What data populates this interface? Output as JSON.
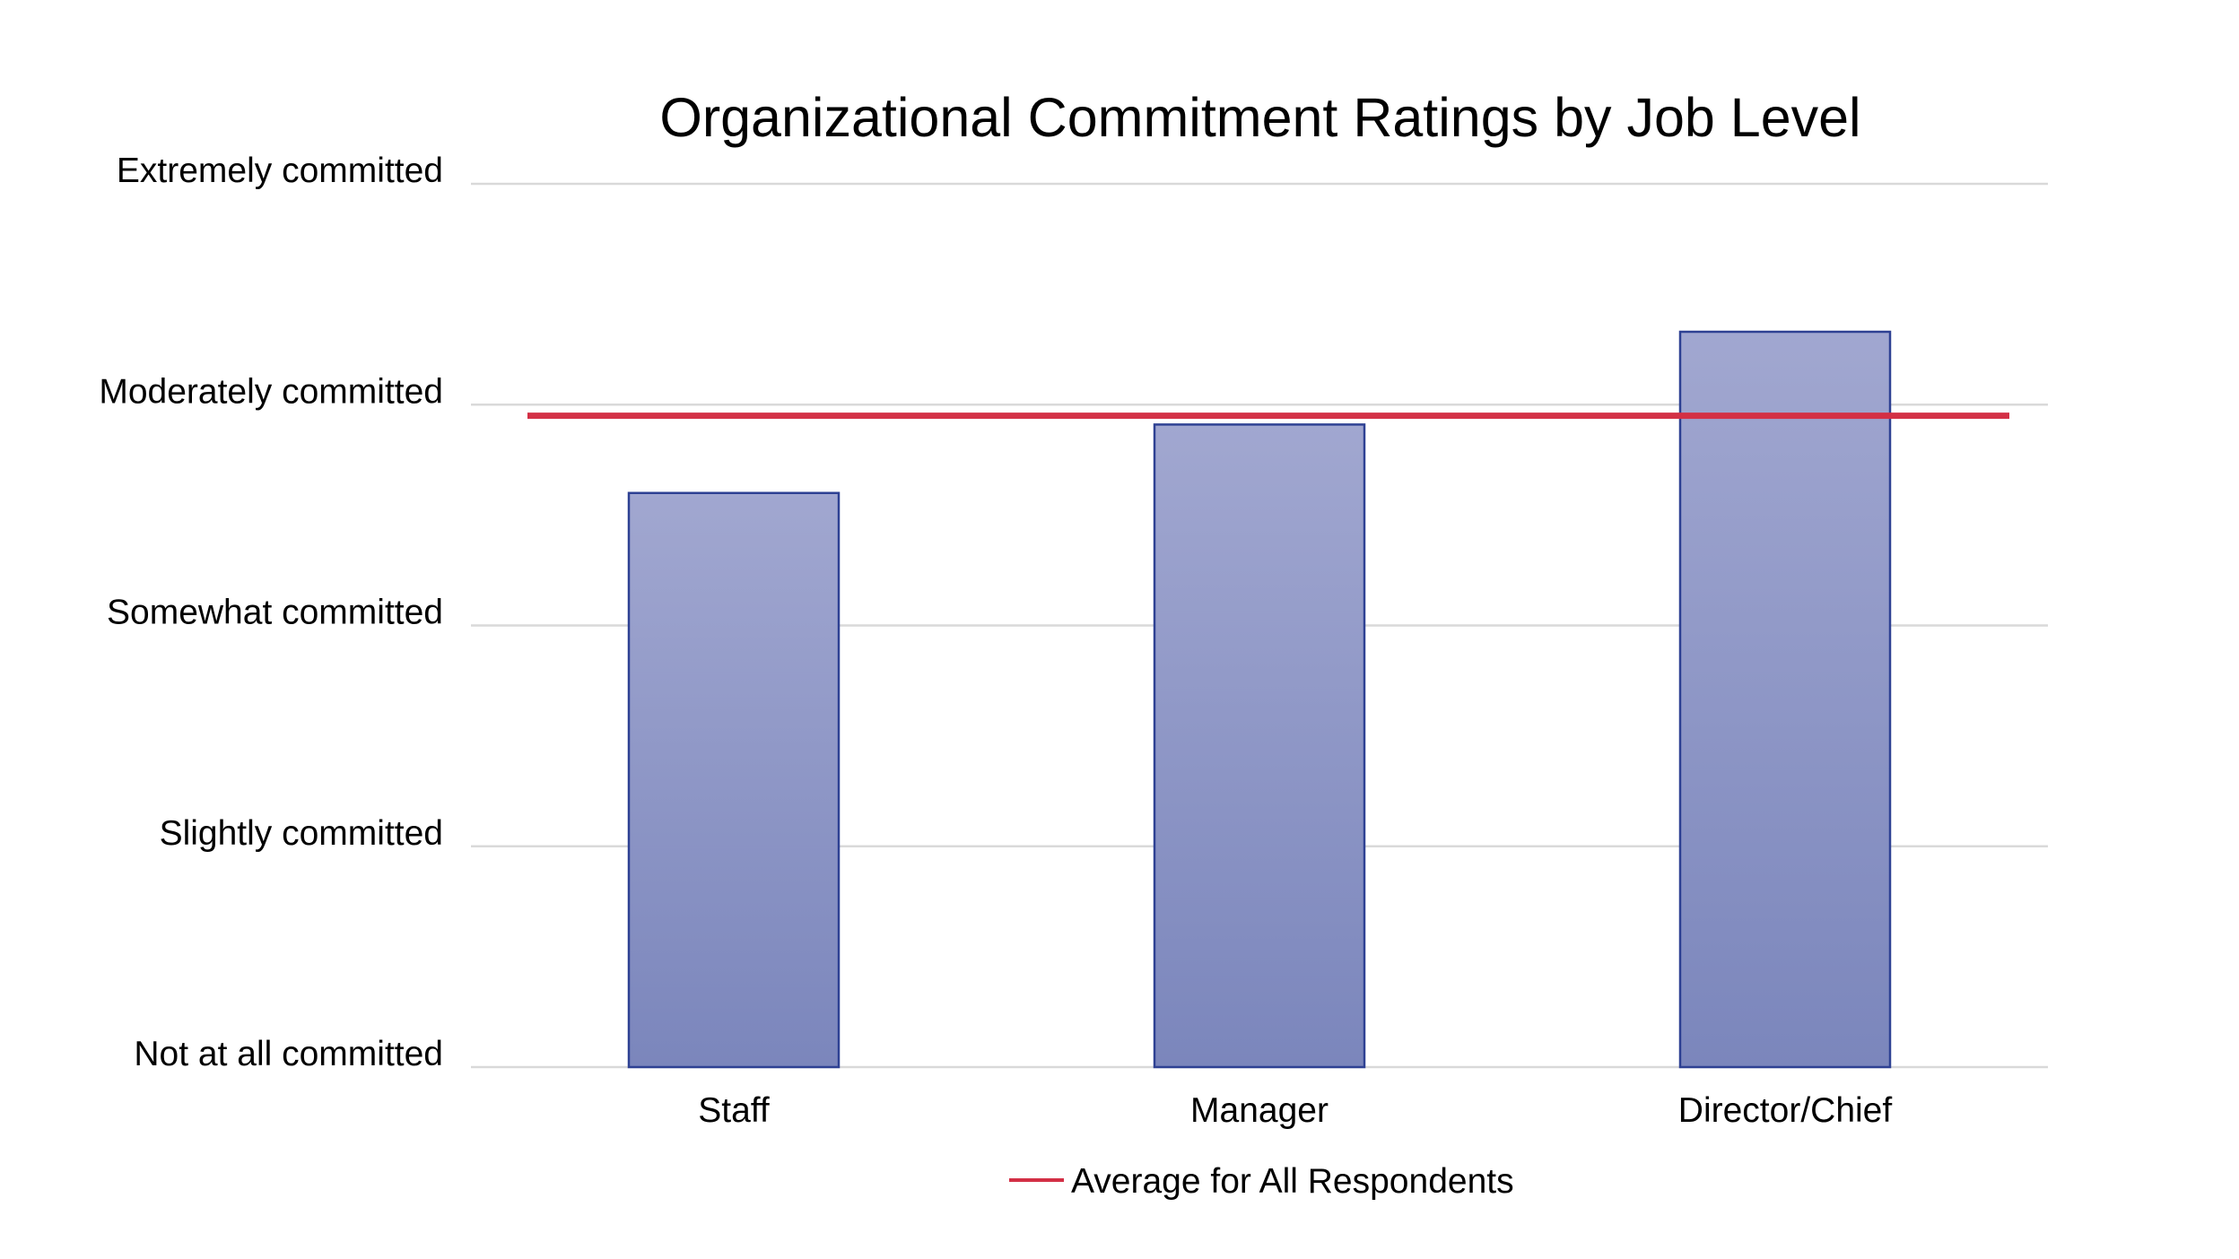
{
  "chart_data": {
    "type": "bar",
    "title": "Organizational Commitment Ratings by Job Level",
    "xlabel": "",
    "ylabel": "",
    "categories": [
      "Staff",
      "Manager",
      "Director/Chief"
    ],
    "series": [
      {
        "type": "bar",
        "values": [
          2.6,
          2.91,
          3.33
        ],
        "color": "#9aa2cd"
      },
      {
        "name": "Average for All Respondents",
        "type": "line",
        "value": 2.95,
        "color": "#d32f45"
      }
    ],
    "ylim": [
      0,
      4
    ],
    "yticks": [
      {
        "value": 0,
        "label": "Not at all committed"
      },
      {
        "value": 1,
        "label": "Slightly committed"
      },
      {
        "value": 2,
        "label": "Somewhat committed"
      },
      {
        "value": 3,
        "label": "Moderately committed"
      },
      {
        "value": 4,
        "label": "Extremely committed"
      }
    ],
    "grid": true,
    "legend": "bottom",
    "colors": {
      "bar_top": "#a1a7d0",
      "bar_bottom": "#7b86bc",
      "bar_border": "#2e4193",
      "average_line": "#d32f45",
      "grid": "#d9d9d9"
    }
  }
}
